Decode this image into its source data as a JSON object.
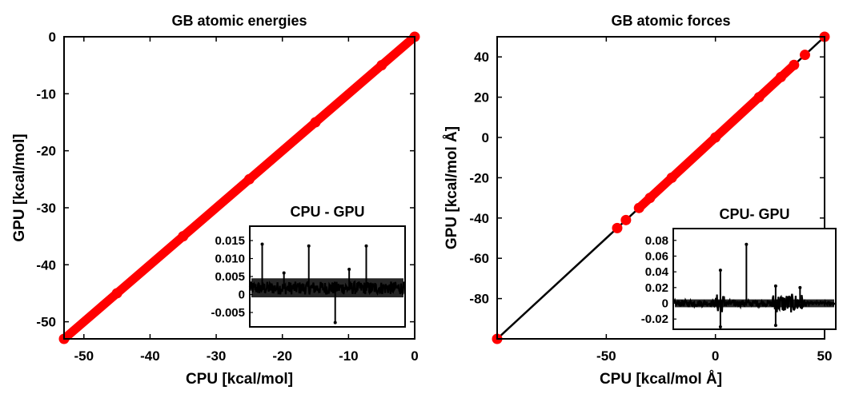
{
  "chart_data": [
    {
      "type": "scatter",
      "title": "GB atomic energies",
      "xlabel": "CPU [kcal/mol]",
      "ylabel": "GPU [kcal/mol]",
      "xlim": [
        -53,
        0
      ],
      "ylim": [
        -53,
        0
      ],
      "xticks": [
        -50,
        -40,
        -30,
        -20,
        -10,
        0
      ],
      "yticks": [
        -50,
        -40,
        -30,
        -20,
        -10,
        0
      ],
      "series": [
        {
          "style": "red-markers",
          "color": "#ff0000",
          "x": [
            -53,
            -45,
            -35,
            -25,
            -15,
            -5,
            0
          ],
          "y": [
            -53,
            -45,
            -35,
            -25,
            -15,
            -5,
            0
          ]
        }
      ],
      "inset": {
        "title": "CPU - GPU",
        "type": "line",
        "ylim": [
          -0.009,
          0.019
        ],
        "yticks": [
          -0.005,
          0,
          0.005,
          0.01,
          0.015
        ],
        "ytick_labels": [
          "-0.005",
          "0",
          "0.005",
          "0.010",
          "0.015"
        ],
        "color": "#000000",
        "spikes": [
          {
            "x": 0.08,
            "y": 0.014
          },
          {
            "x": 0.38,
            "y": 0.0135
          },
          {
            "x": 0.55,
            "y": -0.0078
          },
          {
            "x": 0.75,
            "y": 0.0135
          },
          {
            "x": 0.22,
            "y": 0.006
          },
          {
            "x": 0.64,
            "y": 0.007
          }
        ]
      }
    },
    {
      "type": "scatter",
      "title": "GB atomic forces",
      "xlabel": "CPU [kcal/mol Å]",
      "ylabel": "GPU [kcal/mol Å]",
      "xlim": [
        -100,
        50
      ],
      "ylim": [
        -100,
        50
      ],
      "xticks": [
        -50,
        0,
        50
      ],
      "yticks": [
        -80,
        -60,
        -40,
        -20,
        0,
        20,
        40
      ],
      "series": [
        {
          "style": "black-line",
          "color": "#000000",
          "x": [
            -100,
            50
          ],
          "y": [
            -100,
            50
          ]
        },
        {
          "style": "red-markers",
          "color": "#ff0000",
          "x": [
            -100,
            -45,
            -41,
            -35,
            -30,
            -20,
            0,
            20,
            30,
            36,
            41,
            50
          ],
          "y": [
            -100,
            -45,
            -41,
            -35,
            -30,
            -20,
            0,
            20,
            30,
            36,
            41,
            50
          ]
        }
      ],
      "inset": {
        "title": "CPU- GPU",
        "type": "line",
        "ylim": [
          -0.033,
          0.095
        ],
        "yticks": [
          -0.02,
          0,
          0.02,
          0.04,
          0.06,
          0.08
        ],
        "ytick_labels": [
          "-0.02",
          "0",
          "0.02",
          "0.04",
          "0.06",
          "0.08"
        ],
        "color": "#000000",
        "spikes": [
          {
            "x": 0.29,
            "y": 0.042
          },
          {
            "x": 0.29,
            "y": -0.03
          },
          {
            "x": 0.45,
            "y": 0.075
          },
          {
            "x": 0.63,
            "y": 0.022
          },
          {
            "x": 0.63,
            "y": -0.028
          },
          {
            "x": 0.78,
            "y": 0.02
          }
        ]
      }
    }
  ]
}
